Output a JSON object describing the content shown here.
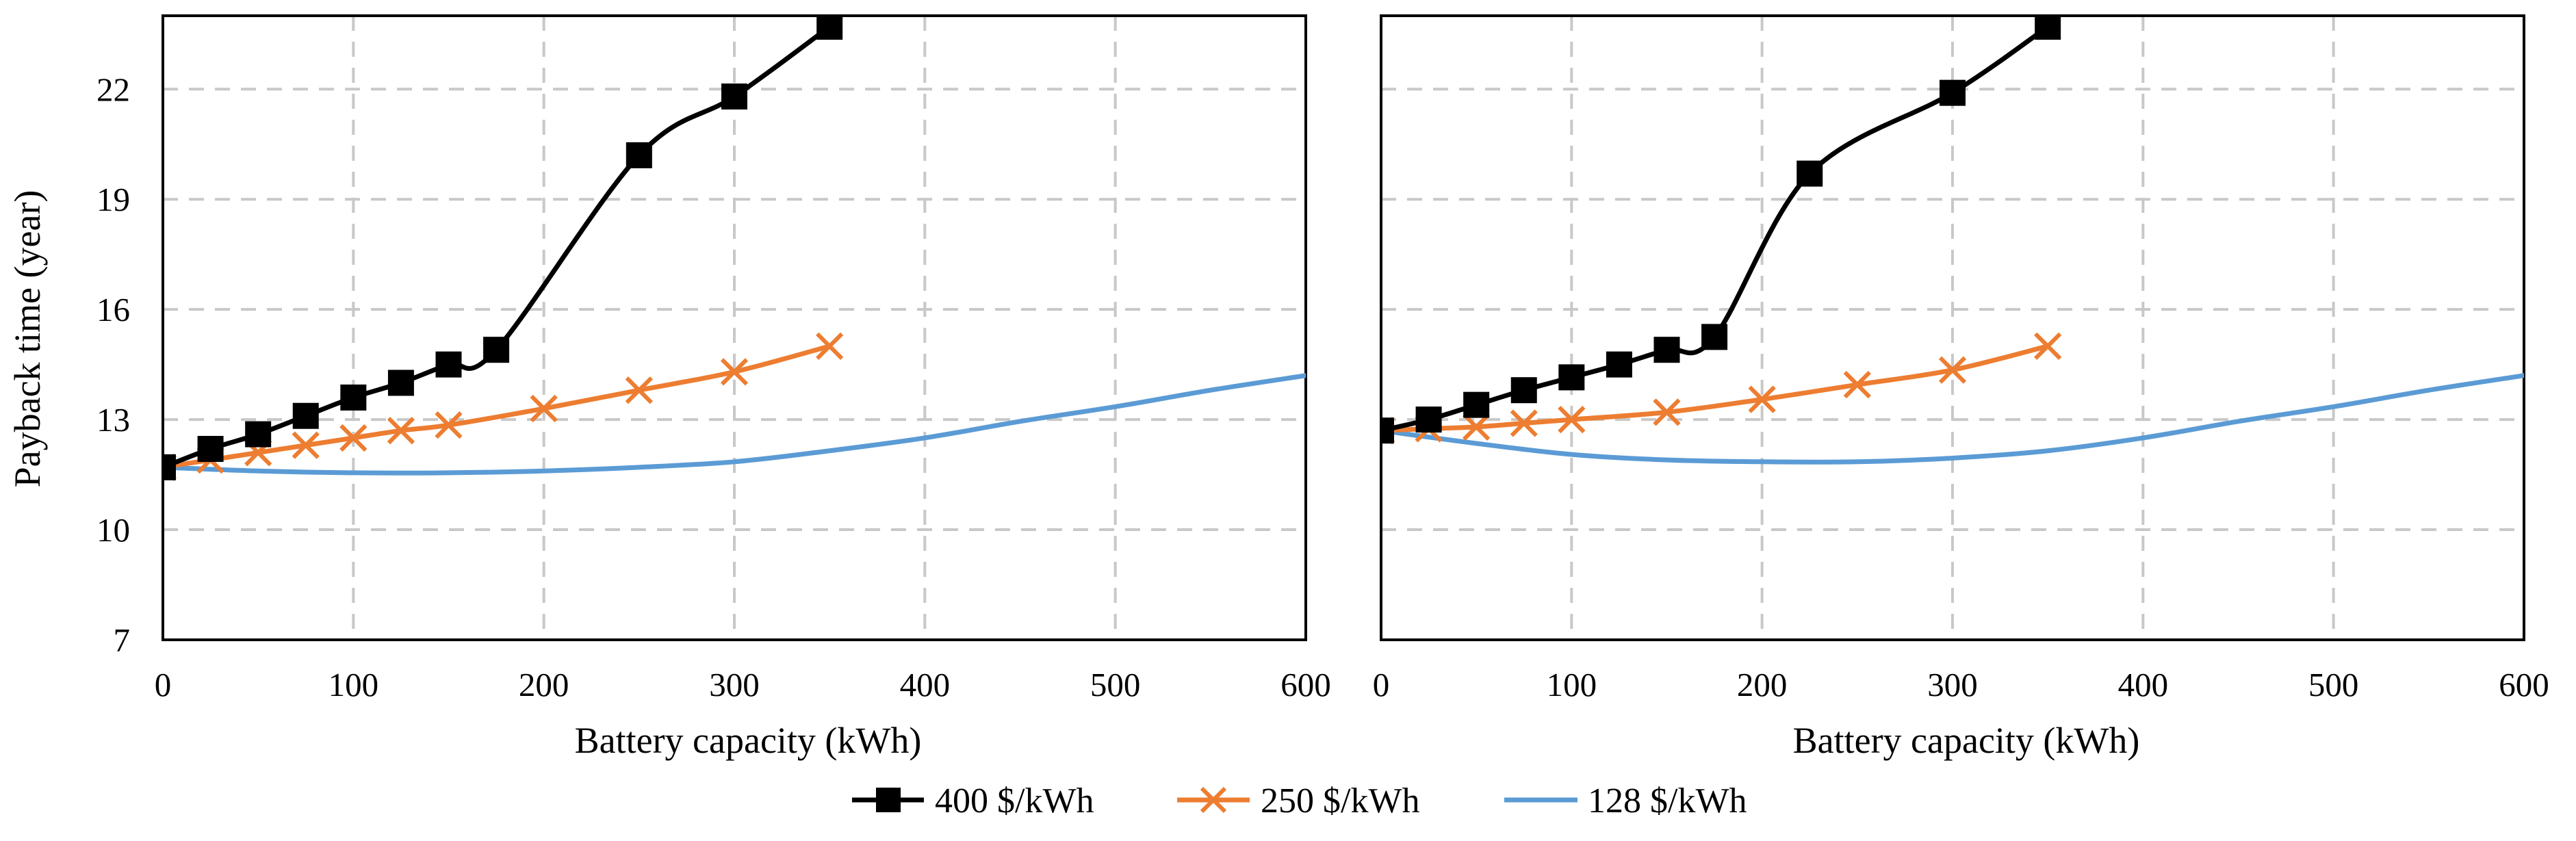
{
  "chart_data": [
    {
      "type": "line",
      "title": "",
      "xlabel": "Battery capacity (kWh)",
      "ylabel": "Payback time (year)",
      "xlim": [
        0,
        600
      ],
      "ylim": [
        7,
        24
      ],
      "xticks": [
        0,
        100,
        200,
        300,
        400,
        500,
        600
      ],
      "yticks": [
        7,
        10,
        13,
        16,
        19,
        22
      ],
      "grid": true,
      "series": [
        {
          "name": "400 $/kWh",
          "color": "#000000",
          "marker": "square",
          "x": [
            0,
            25,
            50,
            75,
            100,
            125,
            150,
            175,
            250,
            300,
            350
          ],
          "y": [
            11.7,
            12.2,
            12.6,
            13.1,
            13.6,
            14.0,
            14.5,
            14.9,
            20.2,
            21.8,
            23.7
          ]
        },
        {
          "name": "250 $/kWh",
          "color": "#ED7D31",
          "marker": "x",
          "x": [
            0,
            25,
            50,
            75,
            100,
            125,
            150,
            200,
            250,
            300,
            350
          ],
          "y": [
            11.7,
            11.9,
            12.1,
            12.3,
            12.5,
            12.7,
            12.85,
            13.3,
            13.8,
            14.3,
            15.0
          ]
        },
        {
          "name": "128 $/kWh",
          "color": "#5B9BD5",
          "marker": "none",
          "x": [
            0,
            50,
            100,
            150,
            200,
            250,
            300,
            350,
            400,
            450,
            500,
            550,
            600
          ],
          "y": [
            11.7,
            11.6,
            11.55,
            11.55,
            11.6,
            11.7,
            11.85,
            12.15,
            12.5,
            12.95,
            13.35,
            13.8,
            14.2
          ]
        }
      ]
    },
    {
      "type": "line",
      "title": "",
      "xlabel": "Battery capacity (kWh)",
      "ylabel": "",
      "xlim": [
        0,
        600
      ],
      "ylim": [
        7,
        24
      ],
      "xticks": [
        0,
        100,
        200,
        300,
        400,
        500,
        600
      ],
      "yticks": [],
      "grid": true,
      "series": [
        {
          "name": "400 $/kWh",
          "color": "#000000",
          "marker": "square",
          "x": [
            0,
            25,
            50,
            75,
            100,
            125,
            150,
            175,
            225,
            300,
            350
          ],
          "y": [
            12.7,
            13.0,
            13.4,
            13.8,
            14.15,
            14.5,
            14.9,
            15.25,
            19.7,
            21.9,
            23.7
          ]
        },
        {
          "name": "250 $/kWh",
          "color": "#ED7D31",
          "marker": "x",
          "x": [
            0,
            25,
            50,
            75,
            100,
            150,
            200,
            250,
            300,
            350
          ],
          "y": [
            12.7,
            12.75,
            12.8,
            12.9,
            13.0,
            13.2,
            13.55,
            13.95,
            14.35,
            15.0
          ]
        },
        {
          "name": "128 $/kWh",
          "color": "#5B9BD5",
          "marker": "none",
          "x": [
            0,
            50,
            100,
            150,
            200,
            250,
            300,
            350,
            400,
            450,
            500,
            550,
            600
          ],
          "y": [
            12.7,
            12.35,
            12.05,
            11.9,
            11.85,
            11.85,
            11.95,
            12.15,
            12.5,
            12.95,
            13.35,
            13.8,
            14.2
          ]
        }
      ]
    }
  ],
  "legend": {
    "position": "bottom-center",
    "items": [
      {
        "label": "400 $/kWh",
        "color": "#000000",
        "marker": "square"
      },
      {
        "label": "250 $/kWh",
        "color": "#ED7D31",
        "marker": "x"
      },
      {
        "label": "128 $/kWh",
        "color": "#5B9BD5",
        "marker": "none"
      }
    ]
  }
}
